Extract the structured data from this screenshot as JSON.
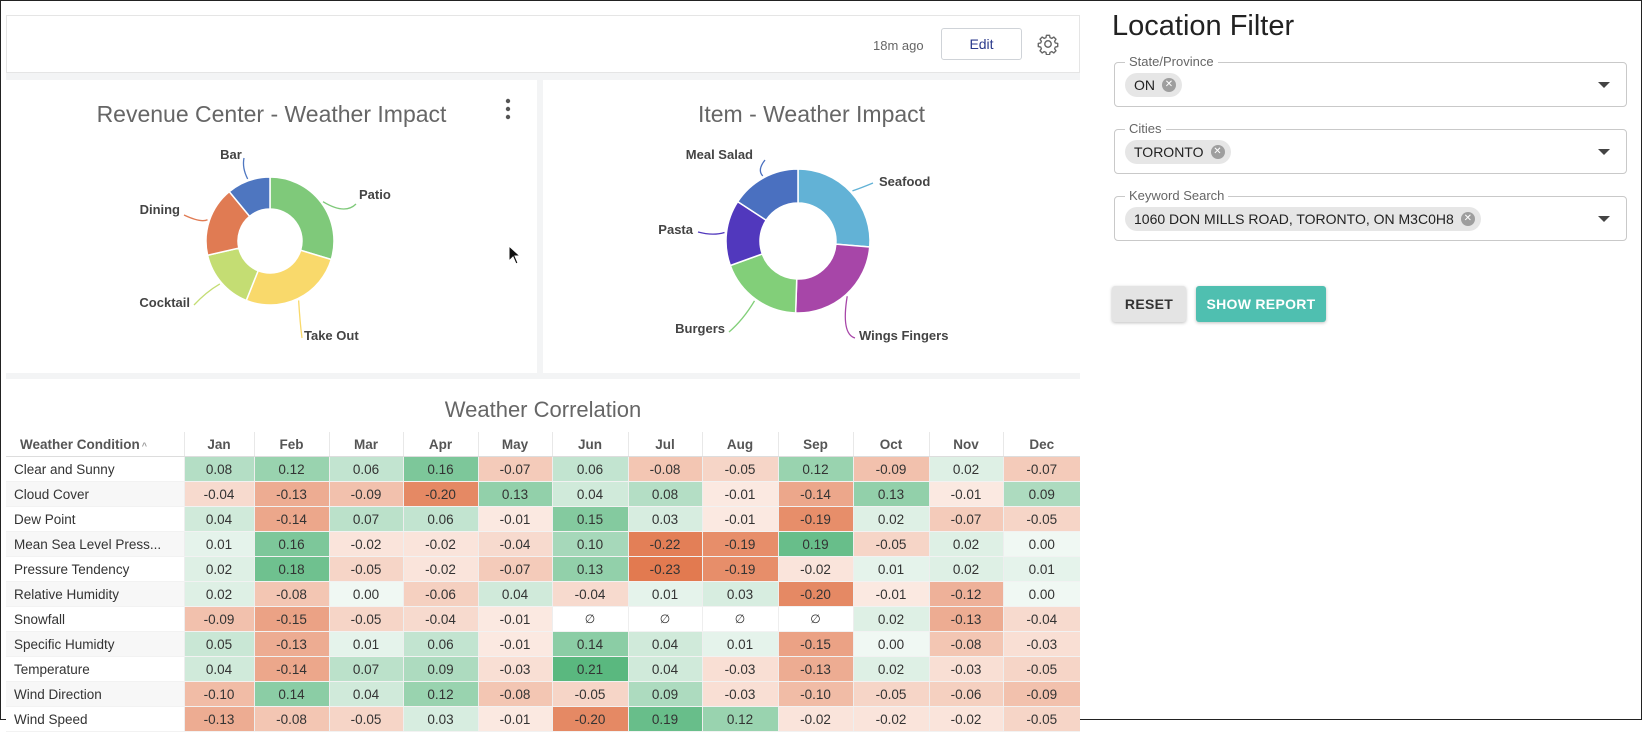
{
  "toolbar": {
    "updated": "18m ago",
    "edit_label": "Edit"
  },
  "revenue_chart": {
    "title": "Revenue Center - Weather Impact",
    "chart_data": {
      "type": "pie",
      "categories": [
        "Patio",
        "Take Out",
        "Cocktail",
        "Dining",
        "Bar"
      ],
      "values": [
        27,
        24,
        14,
        16,
        10
      ],
      "colors": [
        "#7fc97a",
        "#f9d96b",
        "#c4dd73",
        "#e07b53",
        "#4e76c0"
      ]
    }
  },
  "item_chart": {
    "title": "Item - Weather Impact",
    "chart_data": {
      "type": "pie",
      "categories": [
        "Seafood",
        "Wings Fingers",
        "Burgers",
        "Pasta",
        "Meal Salad"
      ],
      "values": [
        25,
        23,
        18,
        14,
        15
      ],
      "colors": [
        "#62b2d6",
        "#a746a8",
        "#82cf79",
        "#5138bd",
        "#4a70c0"
      ]
    }
  },
  "weather_correlation": {
    "title": "Weather Correlation",
    "chart_data": {
      "type": "heatmap",
      "row_header": "Weather Condition",
      "columns": [
        "Jan",
        "Feb",
        "Mar",
        "Apr",
        "May",
        "Jun",
        "Jul",
        "Aug",
        "Sep",
        "Oct",
        "Nov",
        "Dec"
      ],
      "rows": [
        {
          "label": "Clear and Sunny",
          "values": [
            "0.08",
            "0.12",
            "0.06",
            "0.16",
            "-0.07",
            "0.06",
            "-0.08",
            "-0.05",
            "0.12",
            "-0.09",
            "0.02",
            "-0.07"
          ]
        },
        {
          "label": "Cloud Cover",
          "values": [
            "-0.04",
            "-0.13",
            "-0.09",
            "-0.20",
            "0.13",
            "0.04",
            "0.08",
            "-0.01",
            "-0.14",
            "0.13",
            "-0.01",
            "0.09"
          ]
        },
        {
          "label": "Dew Point",
          "values": [
            "0.04",
            "-0.14",
            "0.07",
            "0.06",
            "-0.01",
            "0.15",
            "0.03",
            "-0.01",
            "-0.19",
            "0.02",
            "-0.07",
            "-0.05"
          ]
        },
        {
          "label": "Mean Sea Level Press...",
          "values": [
            "0.01",
            "0.16",
            "-0.02",
            "-0.02",
            "-0.04",
            "0.10",
            "-0.22",
            "-0.19",
            "0.19",
            "-0.05",
            "0.02",
            "0.00"
          ]
        },
        {
          "label": "Pressure Tendency",
          "values": [
            "0.02",
            "0.18",
            "-0.05",
            "-0.02",
            "-0.07",
            "0.13",
            "-0.23",
            "-0.19",
            "-0.02",
            "0.01",
            "0.02",
            "0.01"
          ]
        },
        {
          "label": "Relative Humidity",
          "values": [
            "0.02",
            "-0.08",
            "0.00",
            "-0.06",
            "0.04",
            "-0.04",
            "0.01",
            "0.03",
            "-0.20",
            "-0.01",
            "-0.12",
            "0.00"
          ]
        },
        {
          "label": "Snowfall",
          "values": [
            "-0.09",
            "-0.15",
            "-0.05",
            "-0.04",
            "-0.01",
            "∅",
            "∅",
            "∅",
            "∅",
            "0.02",
            "-0.13",
            "-0.04"
          ]
        },
        {
          "label": "Specific Humidty",
          "values": [
            "0.05",
            "-0.13",
            "0.01",
            "0.06",
            "-0.01",
            "0.14",
            "0.04",
            "0.01",
            "-0.15",
            "0.00",
            "-0.08",
            "-0.03"
          ]
        },
        {
          "label": "Temperature",
          "values": [
            "0.04",
            "-0.14",
            "0.07",
            "0.09",
            "-0.03",
            "0.21",
            "0.04",
            "-0.03",
            "-0.13",
            "0.02",
            "-0.03",
            "-0.05"
          ]
        },
        {
          "label": "Wind Direction",
          "values": [
            "-0.10",
            "0.14",
            "0.04",
            "0.12",
            "-0.08",
            "-0.05",
            "0.09",
            "-0.03",
            "-0.10",
            "-0.05",
            "-0.06",
            "-0.09"
          ]
        },
        {
          "label": "Wind Speed",
          "values": [
            "-0.13",
            "-0.08",
            "-0.05",
            "0.03",
            "-0.01",
            "-0.20",
            "0.19",
            "0.12",
            "-0.02",
            "-0.02",
            "-0.02",
            "-0.05"
          ]
        }
      ]
    }
  },
  "filter": {
    "title": "Location Filter",
    "state_label": "State/Province",
    "state_value": "ON",
    "cities_label": "Cities",
    "cities_value": "TORONTO",
    "keyword_label": "Keyword Search",
    "keyword_value": "1060 DON MILLS ROAD, TORONTO, ON M3C0H8",
    "reset_label": "RESET",
    "show_label": "SHOW REPORT"
  },
  "icons": {
    "settings": "gear-icon",
    "menu": "kebab-menu-icon",
    "chip_clear": "clear-chip-icon",
    "dropdown": "chevron-down-icon"
  }
}
